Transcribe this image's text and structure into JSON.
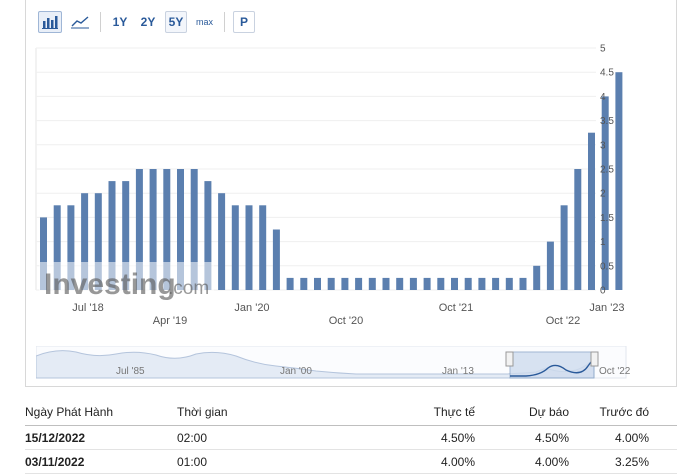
{
  "toolbar": {
    "buttons": [
      {
        "label": "1Y"
      },
      {
        "label": "2Y"
      },
      {
        "label": "5Y",
        "active": true
      },
      {
        "label": "max"
      }
    ],
    "p_label": "P",
    "bar_icon": "bar-chart-icon",
    "line_icon": "area-chart-icon"
  },
  "watermark": {
    "brand": "Investing",
    "suffix": ".com"
  },
  "chart_data": {
    "type": "bar",
    "color": "#5b7faf",
    "y_axis": {
      "min": 0,
      "max": 5,
      "ticks": [
        "0",
        "0.5",
        "1",
        "1.5",
        "2",
        "2.5",
        "3",
        "3.5",
        "4",
        "4.5",
        "5"
      ],
      "side": "right"
    },
    "x_labels_row1": [
      "Jul '18",
      "Jan '20",
      "Oct '21",
      "Jan '23"
    ],
    "x_labels_row2": [
      "Apr '19",
      "Oct '20",
      "Oct '22"
    ],
    "values": [
      1.5,
      1.75,
      1.75,
      2.0,
      2.0,
      2.25,
      2.25,
      2.5,
      2.5,
      2.5,
      2.5,
      2.5,
      2.25,
      2.0,
      1.75,
      1.75,
      1.75,
      1.25,
      0.25,
      0.25,
      0.25,
      0.25,
      0.25,
      0.25,
      0.25,
      0.25,
      0.25,
      0.25,
      0.25,
      0.25,
      0.25,
      0.25,
      0.25,
      0.25,
      0.25,
      0.25,
      0.5,
      1.0,
      1.75,
      2.5,
      3.25,
      4.0,
      4.5
    ]
  },
  "navigator": {
    "labels": [
      "Jul '85",
      "Jan '00",
      "Jan '13",
      "Oct '22"
    ]
  },
  "table": {
    "headers": [
      "Ngày Phát Hành",
      "Thời gian",
      "Thực tế",
      "Dự báo",
      "Trước đó"
    ],
    "rows": [
      {
        "date": "15/12/2022",
        "time": "02:00",
        "actual": "4.50%",
        "forecast": "4.50%",
        "previous": "4.00%"
      },
      {
        "date": "03/11/2022",
        "time": "01:00",
        "actual": "4.00%",
        "forecast": "4.00%",
        "previous": "3.25%"
      }
    ]
  }
}
